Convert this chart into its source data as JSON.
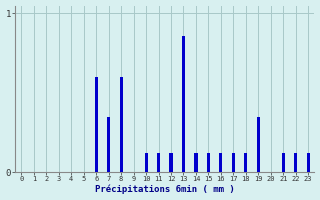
{
  "title": "",
  "xlabel": "Précipitations 6min ( mm )",
  "ylabel": "",
  "background_color": "#d8f0f0",
  "bar_color": "#0000cc",
  "grid_color": "#a8c8c8",
  "axis_color": "#888888",
  "xlim": [
    -0.5,
    23.5
  ],
  "ylim": [
    0,
    1.05
  ],
  "yticks": [
    0,
    1
  ],
  "xtick_labels": [
    "0",
    "1",
    "2",
    "3",
    "4",
    "5",
    "6",
    "7",
    "8",
    "9",
    "10",
    "11",
    "12",
    "13",
    "14",
    "15",
    "16",
    "17",
    "18",
    "19",
    "20",
    "21",
    "22",
    "23"
  ],
  "values": [
    0,
    0,
    0,
    0,
    0,
    0,
    0.6,
    0.35,
    0.6,
    0,
    0.12,
    0.12,
    0.12,
    0.86,
    0.12,
    0.12,
    0.12,
    0.12,
    0.12,
    0.35,
    0,
    0.12,
    0.12,
    0.12
  ],
  "bar_width": 0.25
}
